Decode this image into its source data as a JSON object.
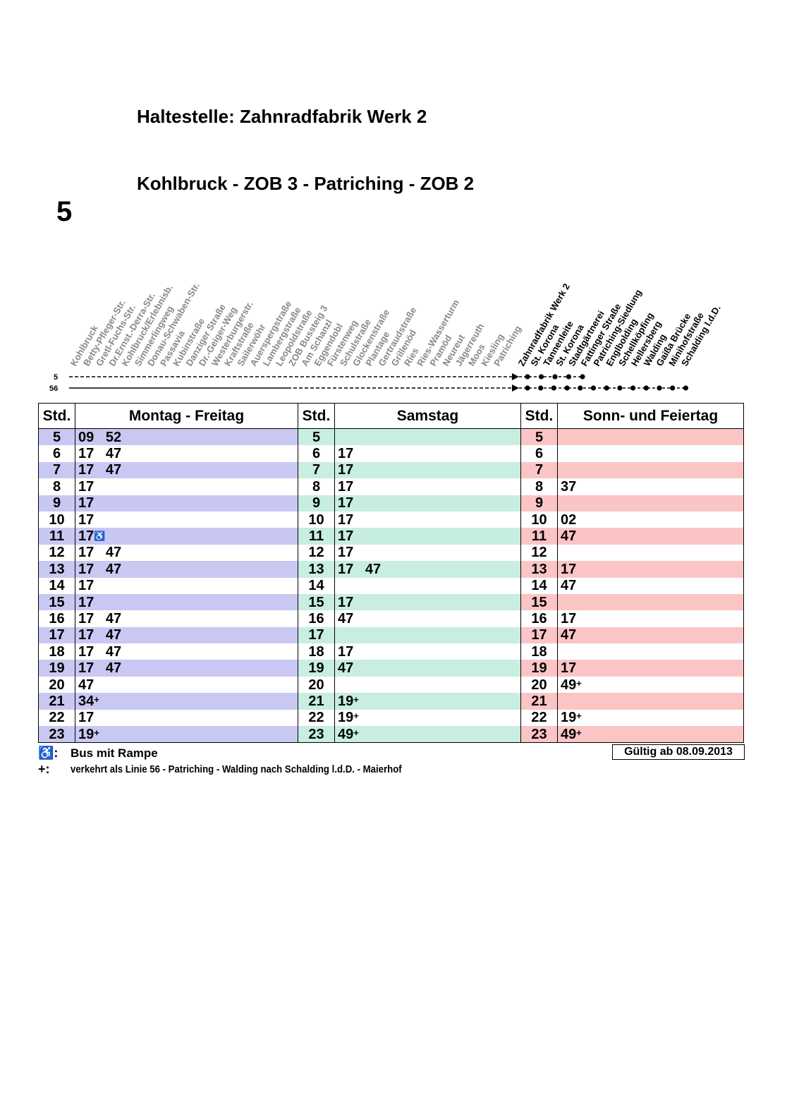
{
  "stop_title": "Haltestelle: Zahnradfabrik Werk 2",
  "route_title": "Kohlbruck - ZOB 3 - Patriching - ZOB 2",
  "line_number": "5",
  "route": {
    "line_labels": [
      "5",
      "56"
    ],
    "stops_past": [
      "Kohlbruck",
      "Betty-Pfleger-Str.",
      "Gretl-Fuchs-Str.",
      "Dr.Ernst.-Derra-Str.",
      "Kohlbruck/Erlebnisb.",
      "Simmerlingweg",
      "Donau-Schwaben-Str.",
      "Passavia",
      "Kubinstraße",
      "Danziger Straße",
      "Dr.-Geiger-Weg",
      "Westerburgerstr.",
      "Kraftstraße",
      "Sailerwöhr",
      "Auerspergstraße",
      "Lambergstraße",
      "Leopoldstraße",
      "ZOB Bussteig 3",
      "Am Schanzl",
      "Eggendobl",
      "Fürstenweg",
      "Schulstraße",
      "Glockenstraße",
      "Plantage",
      "Gertraudstraße",
      "Grillenöd",
      "Ries",
      "Ries-Wasserturm",
      "Pramöd",
      "Neureut",
      "Jägerreuth",
      "Moos",
      "Kiesling",
      "Patriching"
    ],
    "stops_future": [
      "Zahnradfabrik Werk 2",
      "St. Korona",
      "Tannenleite",
      "St. Korona",
      "Stadtgärtnerei",
      "Fattinger Straße",
      "Patriching-Siedlung",
      "Englbolding",
      "Schellköpfing",
      "Hellersberg",
      "Walding",
      "Gaißa Brücke",
      "Minihofstraße",
      "Schalding l.d.D."
    ]
  },
  "table": {
    "headers": {
      "std": "Std.",
      "mf": "Montag - Freitag",
      "sa": "Samstag",
      "so": "Sonn- und Feiertag"
    },
    "rows": [
      {
        "hour": "5",
        "mf": "09   52",
        "sa": "",
        "so": ""
      },
      {
        "hour": "6",
        "mf": "17   47",
        "sa": "17",
        "so": ""
      },
      {
        "hour": "7",
        "mf": "17   47",
        "sa": "17",
        "so": ""
      },
      {
        "hour": "8",
        "mf": "17",
        "sa": "17",
        "so": "37"
      },
      {
        "hour": "9",
        "mf": "17",
        "sa": "17",
        "so": ""
      },
      {
        "hour": "10",
        "mf": "17",
        "sa": "17",
        "so": "02"
      },
      {
        "hour": "11",
        "mf": "17",
        "mf_wc": true,
        "sa": "17",
        "so": "47"
      },
      {
        "hour": "12",
        "mf": "17   47",
        "sa": "17",
        "so": ""
      },
      {
        "hour": "13",
        "mf": "17   47",
        "sa": "17   47",
        "so": "17"
      },
      {
        "hour": "14",
        "mf": "17",
        "sa": "",
        "so": "47"
      },
      {
        "hour": "15",
        "mf": "17",
        "sa": "17",
        "so": ""
      },
      {
        "hour": "16",
        "mf": "17   47",
        "sa": "47",
        "so": "17"
      },
      {
        "hour": "17",
        "mf": "17   47",
        "sa": "",
        "so": "47"
      },
      {
        "hour": "18",
        "mf": "17   47",
        "sa": "17",
        "so": ""
      },
      {
        "hour": "19",
        "mf": "17   47",
        "sa": "47",
        "so": "17"
      },
      {
        "hour": "20",
        "mf": "47",
        "sa": "",
        "so": "49",
        "so_plus": true
      },
      {
        "hour": "21",
        "mf": "34",
        "mf_plus": true,
        "sa": "19",
        "sa_plus": true,
        "so": ""
      },
      {
        "hour": "22",
        "mf": "17",
        "sa": "19",
        "sa_plus": true,
        "so": "19",
        "so_plus": true
      },
      {
        "hour": "23",
        "mf": "19",
        "mf_plus": true,
        "sa": "49",
        "sa_plus": true,
        "so": "49",
        "so_plus": true
      }
    ]
  },
  "legend": {
    "wheelchair_symbol": "♿:",
    "wheelchair_text": "Bus mit Rampe",
    "plus_symbol": "+:",
    "plus_text": "verkehrt als Linie 56 - Patriching - Walding nach Schalding l.d.D. - Maierhof"
  },
  "valid_from": "Gültig ab 08.09.2013",
  "colors": {
    "mf_band": "#c9c8f3",
    "sa_band": "#c7eee0",
    "so_band": "#fbc5c6",
    "past_stop_text": "#888888"
  }
}
